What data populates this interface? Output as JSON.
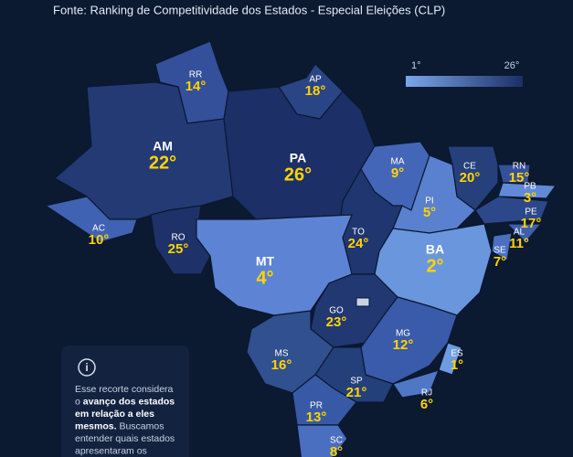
{
  "header": {
    "source": "Fonte: Ranking de Competitividade dos Estados - Especial Eleições (CLP)"
  },
  "legend": {
    "min_label": "1°",
    "max_label": "26°",
    "color_from": "#7aa6ea",
    "color_to": "#1c2f66"
  },
  "states": [
    {
      "abbr": "RR",
      "rank": "14°",
      "color": "#34509a"
    },
    {
      "abbr": "AP",
      "rank": "18°",
      "color": "#2a4585"
    },
    {
      "abbr": "AM",
      "rank": "22°",
      "color": "#233a75"
    },
    {
      "abbr": "PA",
      "rank": "26°",
      "color": "#1c2f66"
    },
    {
      "abbr": "MA",
      "rank": "9°",
      "color": "#4466b8"
    },
    {
      "abbr": "CE",
      "rank": "20°",
      "color": "#26407c"
    },
    {
      "abbr": "RN",
      "rank": "15°",
      "color": "#33509a"
    },
    {
      "abbr": "PB",
      "rank": "3°",
      "color": "#6189d8"
    },
    {
      "abbr": "PE",
      "rank": "17°",
      "color": "#2c488a"
    },
    {
      "abbr": "AL",
      "rank": "11°",
      "color": "#3e5eae"
    },
    {
      "abbr": "SE",
      "rank": "7°",
      "color": "#4b70c2"
    },
    {
      "abbr": "PI",
      "rank": "5°",
      "color": "#5a80d0"
    },
    {
      "abbr": "TO",
      "rank": "24°",
      "color": "#203670"
    },
    {
      "abbr": "BA",
      "rank": "2°",
      "color": "#6a96de"
    },
    {
      "abbr": "AC",
      "rank": "10°",
      "color": "#4062b2"
    },
    {
      "abbr": "RO",
      "rank": "25°",
      "color": "#1e3269"
    },
    {
      "abbr": "MT",
      "rank": "4°",
      "color": "#5d84d4"
    },
    {
      "abbr": "GO",
      "rank": "23°",
      "color": "#213873"
    },
    {
      "abbr": "MG",
      "rank": "12°",
      "color": "#3a5aaa"
    },
    {
      "abbr": "MS",
      "rank": "16°",
      "color": "#30508f"
    },
    {
      "abbr": "ES",
      "rank": "1°",
      "color": "#6e9be2"
    },
    {
      "abbr": "SP",
      "rank": "21°",
      "color": "#24407a"
    },
    {
      "abbr": "RJ",
      "rank": "6°",
      "color": "#5077c6"
    },
    {
      "abbr": "PR",
      "rank": "13°",
      "color": "#385aa6"
    },
    {
      "abbr": "SC",
      "rank": "8°",
      "color": "#4a6ec0"
    }
  ],
  "info": {
    "lines": [
      [
        {
          "text": "Esse recorte considera",
          "bold": false
        }
      ],
      [
        {
          "text": "o ",
          "bold": false
        },
        {
          "text": "avanço dos estados",
          "bold": true
        }
      ],
      [
        {
          "text": "em relação a eles",
          "bold": true
        }
      ],
      [
        {
          "text": "mesmos.",
          "bold": true
        },
        {
          "text": " Buscamos",
          "bold": false
        }
      ],
      [
        {
          "text": "entender quais estados",
          "bold": false
        }
      ],
      [
        {
          "text": "apresentaram os",
          "bold": false
        }
      ]
    ]
  }
}
